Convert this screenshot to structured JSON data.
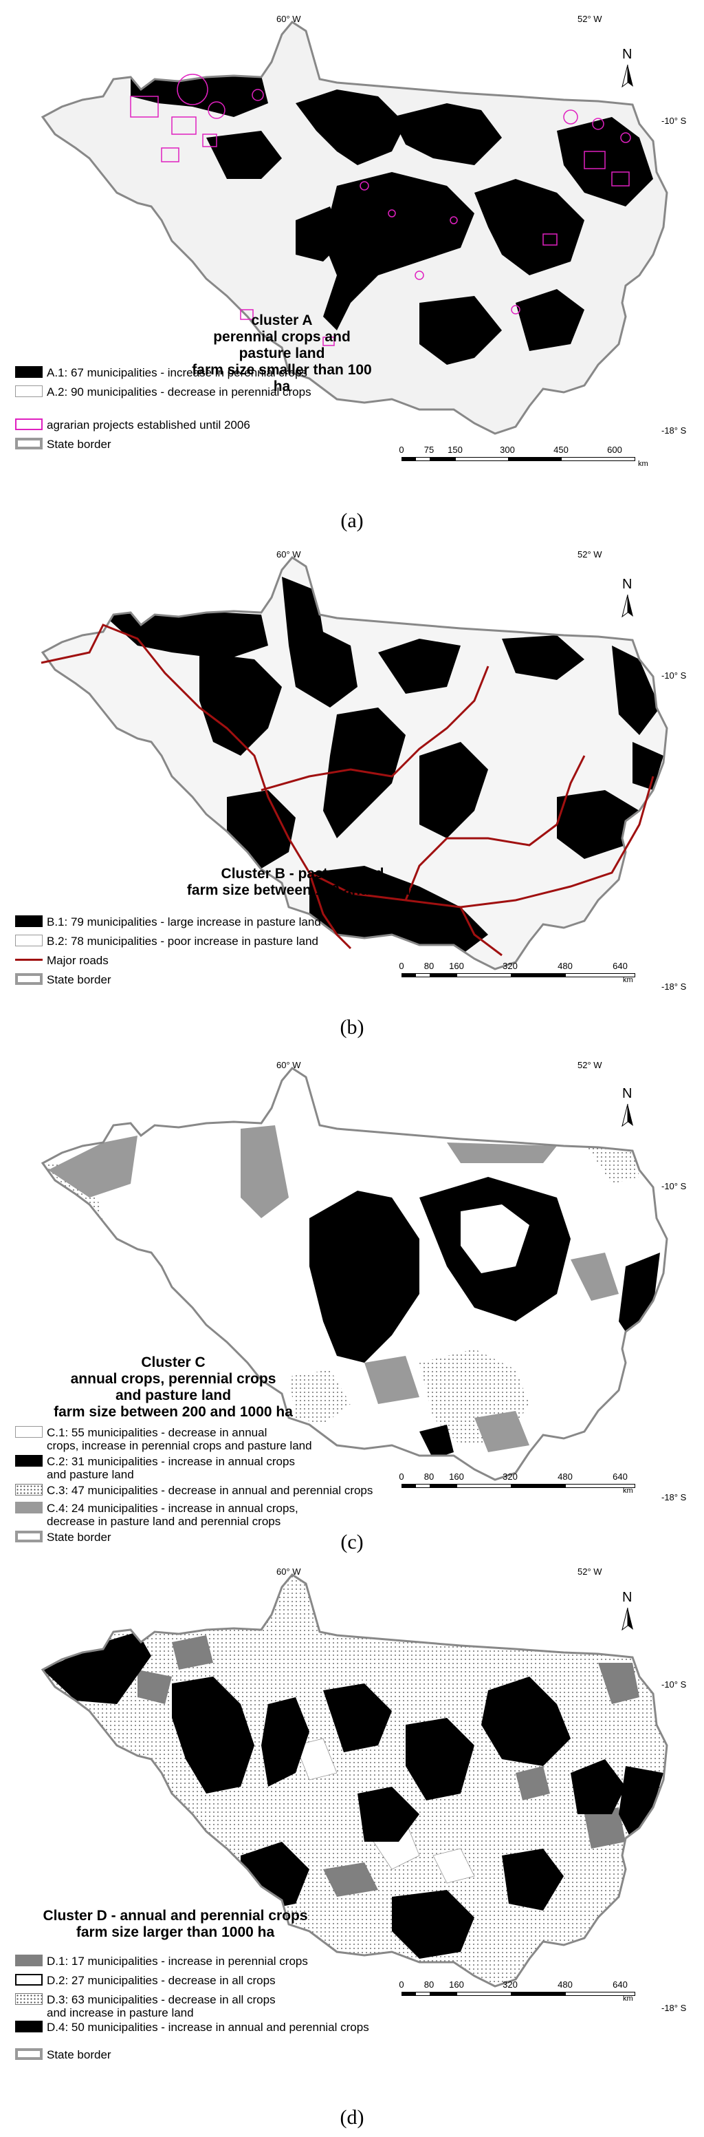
{
  "axes": {
    "lon_left": "60° W",
    "lon_right": "52° W",
    "lat_top": "-10° S",
    "lat_bottom": "-18° S",
    "north": "N"
  },
  "scale_unit": "km",
  "panels": [
    {
      "caption": "(a)",
      "title_lines": [
        "cluster A",
        "perennial crops and pasture land",
        "farm size smaller than 100 ha"
      ],
      "legend": [
        {
          "swatch": "black",
          "label": "A.1: 67 municipalities - increase in perennial crops"
        },
        {
          "swatch": "white",
          "label": "A.2: 90 municipalities - decrease in perennial crops"
        },
        {
          "swatch": "pink",
          "label": "agrarian projects established until 2006"
        },
        {
          "swatch": "state",
          "label": "State border"
        }
      ],
      "scale_ticks": [
        "0",
        "75",
        "150",
        "300",
        "450",
        "600"
      ]
    },
    {
      "caption": "(b)",
      "title_lines": [
        "Cluster B - pasture land",
        "farm size between 100 and 200 ha"
      ],
      "legend": [
        {
          "swatch": "black",
          "label": "B.1: 79 municipalities - large increase in pasture land"
        },
        {
          "swatch": "white",
          "label": "B.2: 78 municipalities - poor increase in pasture land"
        },
        {
          "swatch": "road",
          "label": "Major roads"
        },
        {
          "swatch": "state",
          "label": "State border"
        }
      ],
      "scale_ticks": [
        "0",
        "80",
        "160",
        "320",
        "480",
        "640"
      ]
    },
    {
      "caption": "(c)",
      "title_lines": [
        "Cluster C",
        "annual crops, perennial crops",
        "and pasture land",
        "farm size between 200 and 1000 ha"
      ],
      "legend": [
        {
          "swatch": "white",
          "label": "C.1: 55 municipalities - decrease in annual",
          "label2": "crops, increase in perennial crops and pasture land"
        },
        {
          "swatch": "black",
          "label": "C.2: 31 municipalities - increase in annual crops",
          "label2": "and pasture land"
        },
        {
          "swatch": "dots",
          "label": "C.3: 47 municipalities - decrease in annual and perennial crops"
        },
        {
          "swatch": "gray",
          "label": "C.4: 24 municipalities - increase in annual crops,",
          "label2": "decrease in pasture land and perennial crops"
        },
        {
          "swatch": "state",
          "label": "State border"
        }
      ],
      "scale_ticks": [
        "0",
        "80",
        "160",
        "320",
        "480",
        "640"
      ]
    },
    {
      "caption": "(d)",
      "title_lines": [
        "Cluster D - annual and perennial crops",
        "farm size larger than 1000 ha"
      ],
      "legend": [
        {
          "swatch": "dgray",
          "label": "D.1: 17 municipalities - increase in perennial crops"
        },
        {
          "swatch": "whiteb",
          "label": "D.2: 27 municipalities - decrease in all crops"
        },
        {
          "swatch": "dots",
          "label": "D.3: 63 municipalities - decrease in all crops",
          "label2": "and increase in pasture land"
        },
        {
          "swatch": "black",
          "label": "D.4: 50 municipalities - increase in annual and perennial crops"
        },
        {
          "swatch": "state",
          "label": "State border"
        }
      ],
      "scale_ticks": [
        "0",
        "80",
        "160",
        "320",
        "480",
        "640"
      ]
    }
  ]
}
